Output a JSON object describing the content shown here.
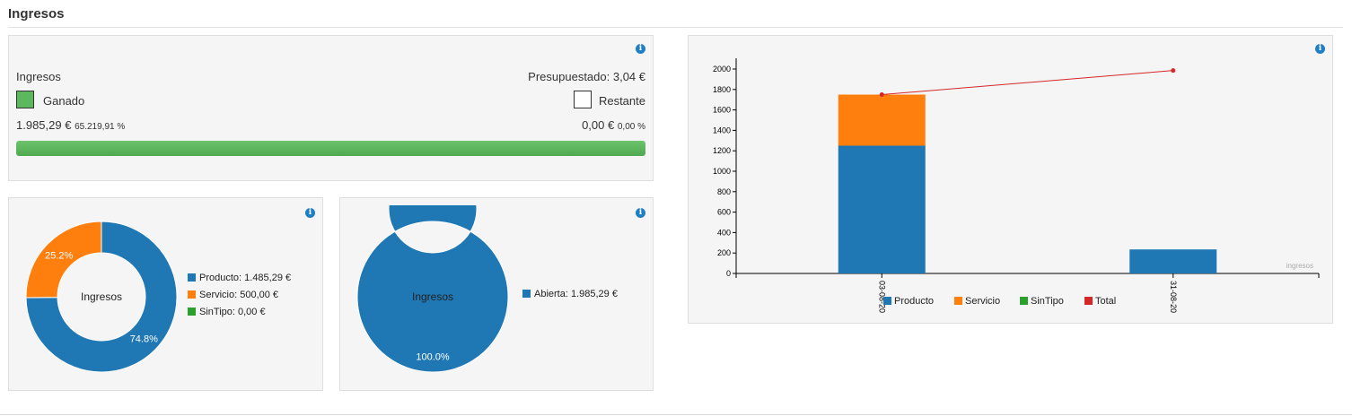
{
  "page": {
    "title": "Ingresos"
  },
  "budget": {
    "label": "Ingresos",
    "budgeted_label": "Presupuestado: 3,04 €",
    "earned_label": "Ganado",
    "remaining_label": "Restante",
    "earned_value": "1.985,29 €",
    "earned_pct": "65.219,91 %",
    "remaining_value": "0,00 €",
    "remaining_pct": "0,00 %",
    "progress_fraction": 1.0,
    "earned_color": "#5cb85c",
    "info_glyph": "i"
  },
  "donut_type": {
    "center_label": "Ingresos",
    "slices": [
      {
        "legend": "Producto: 1.485,29 €",
        "value": 1485.29,
        "pct_label": "74.8%",
        "color": "#1f77b4"
      },
      {
        "legend": "Servicio: 500,00 €",
        "value": 500.0,
        "pct_label": "25.2%",
        "color": "#ff7f0e"
      },
      {
        "legend": "SinTipo: 0,00 €",
        "value": 0,
        "pct_label": "",
        "color": "#2ca02c"
      }
    ]
  },
  "donut_status": {
    "center_label": "Ingresos",
    "slices": [
      {
        "legend": "Abierta: 1.985,29 €",
        "value": 1985.29,
        "pct_label": "100.0%",
        "color": "#1f77b4"
      }
    ]
  },
  "chart_data": {
    "type": "bar",
    "categories": [
      "03-08-20",
      "31-08-20"
    ],
    "series": [
      {
        "name": "Producto",
        "values": [
          1250,
          235
        ],
        "color": "#1f77b4"
      },
      {
        "name": "Servicio",
        "values": [
          500,
          0
        ],
        "color": "#ff7f0e"
      },
      {
        "name": "SinTipo",
        "values": [
          0,
          0
        ],
        "color": "#2ca02c"
      },
      {
        "name": "Total",
        "type": "line",
        "values": [
          1750,
          1985.29
        ],
        "color": "#d62728"
      }
    ],
    "ylim": [
      0,
      2000
    ],
    "yticks": [
      0,
      200,
      400,
      600,
      800,
      1000,
      1200,
      1400,
      1600,
      1800,
      2000
    ],
    "watermark": "ingresos",
    "stacked": true,
    "legend_position": "bottom"
  }
}
